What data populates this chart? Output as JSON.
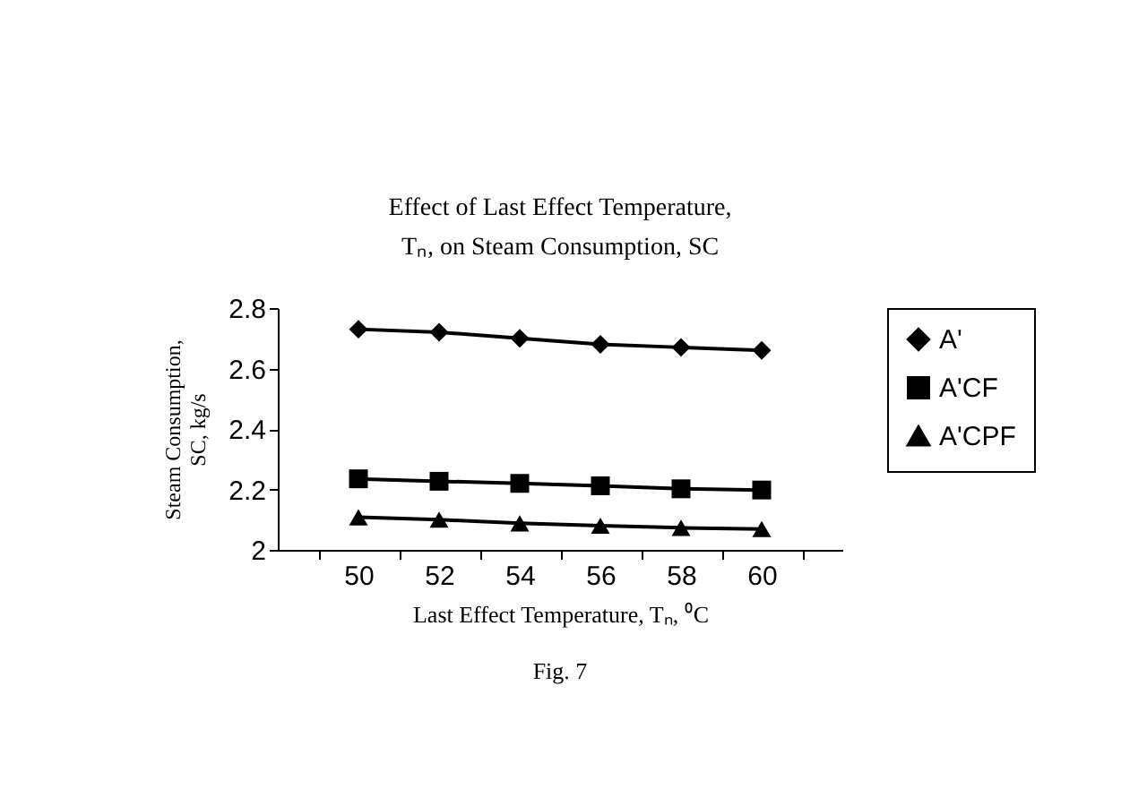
{
  "chart_data": {
    "type": "line",
    "title": "Effect of Last Effect Temperature, Tₙ, on Steam Consumption, SC",
    "xlabel": "Last Effect Temperature, Tₙ, ⁰C",
    "ylabel": "Steam Consumption, SC, kg/s",
    "annotations": [
      "Fig. 7"
    ],
    "categories": [
      "50",
      "52",
      "54",
      "56",
      "58",
      "60"
    ],
    "series": [
      {
        "name": "A'",
        "color": "#000000",
        "marker": "diamond",
        "values": [
          2.73,
          2.72,
          2.7,
          2.68,
          2.67,
          2.66
        ]
      },
      {
        "name": "A'CF",
        "color": "#000000",
        "marker": "square",
        "values": [
          2.235,
          2.227,
          2.22,
          2.212,
          2.202,
          2.198
        ]
      },
      {
        "name": "A'CPF",
        "color": "#000000",
        "marker": "triangle",
        "values": [
          2.108,
          2.1,
          2.088,
          2.08,
          2.073,
          2.069
        ]
      }
    ],
    "ylim": [
      2,
      2.8
    ],
    "yticks": [
      2,
      2.2,
      2.4,
      2.6,
      2.8
    ],
    "grid": false,
    "legend": "right"
  }
}
